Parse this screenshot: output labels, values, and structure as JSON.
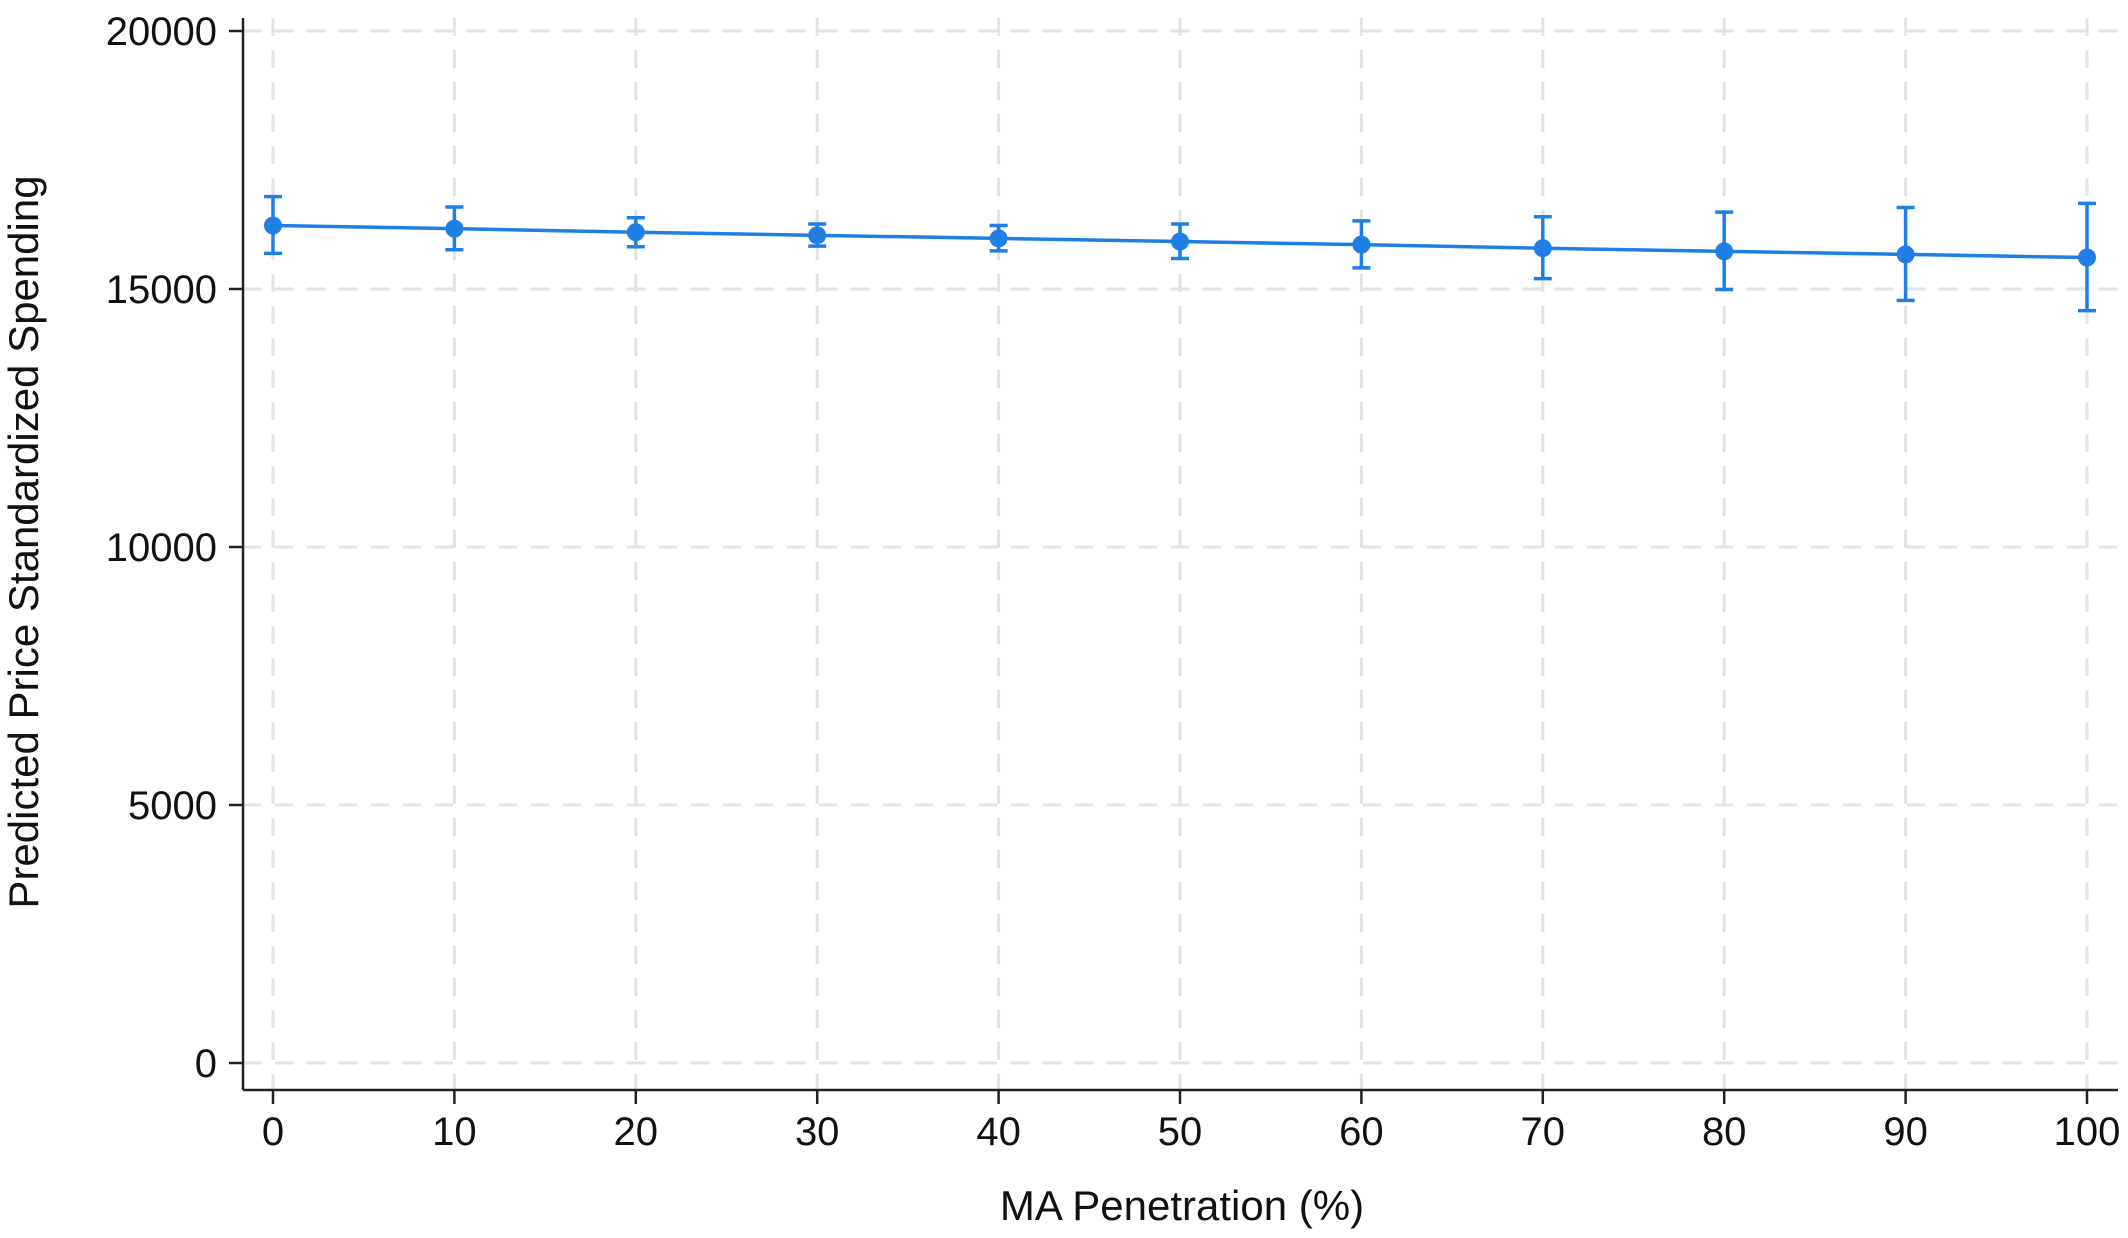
{
  "chart_data": {
    "type": "line",
    "title": "",
    "xlabel": "MA Penetration (%)",
    "ylabel": "Predicted Price Standardized Spending",
    "xlim": [
      0,
      100
    ],
    "ylim": [
      0,
      20000
    ],
    "x_ticks": [
      0,
      10,
      20,
      30,
      40,
      50,
      60,
      70,
      80,
      90,
      100
    ],
    "y_ticks": [
      0,
      5000,
      10000,
      15000,
      20000
    ],
    "grid": true,
    "grid_style": "dashed",
    "legend": "none",
    "series": [
      {
        "color": "#1f7fe5",
        "x": [
          0,
          10,
          20,
          30,
          40,
          50,
          60,
          70,
          80,
          90,
          100
        ],
        "y": [
          16230,
          16170,
          16100,
          16040,
          15980,
          15920,
          15860,
          15790,
          15730,
          15670,
          15610
        ],
        "error_lower": [
          15690,
          15760,
          15820,
          15830,
          15740,
          15590,
          15410,
          15200,
          14990,
          14780,
          14580
        ],
        "error_upper": [
          16790,
          16590,
          16380,
          16260,
          16230,
          16260,
          16320,
          16400,
          16490,
          16580,
          16660
        ]
      }
    ]
  },
  "colors": {
    "series": "#1f7fe5",
    "grid": "#e3e3e3",
    "axis": "#222222"
  }
}
